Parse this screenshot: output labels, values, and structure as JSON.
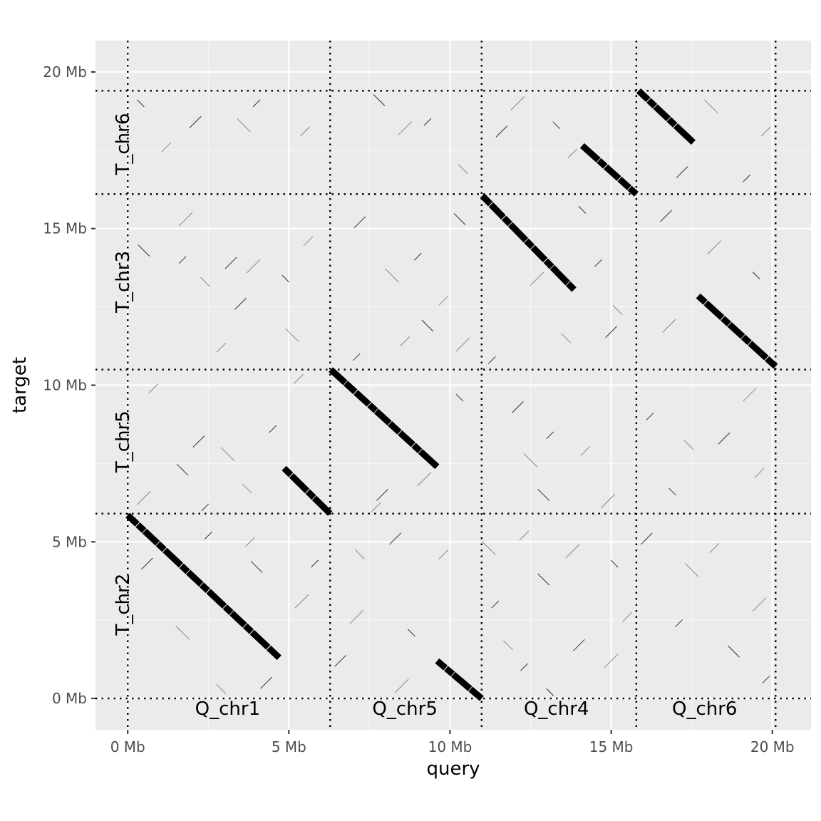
{
  "chart_data": {
    "type": "scatter",
    "subtype": "dot-plot (sequence alignment)",
    "xlabel": "query",
    "ylabel": "target",
    "xlim": [
      -1.0,
      21.2
    ],
    "ylim": [
      -1.0,
      21.0
    ],
    "x_ticks": [
      {
        "value": 0,
        "label": "0 Mb"
      },
      {
        "value": 5,
        "label": "5 Mb"
      },
      {
        "value": 10,
        "label": "10 Mb"
      },
      {
        "value": 15,
        "label": "15 Mb"
      },
      {
        "value": 20,
        "label": "20 Mb"
      }
    ],
    "y_ticks": [
      {
        "value": 0,
        "label": "0 Mb"
      },
      {
        "value": 5,
        "label": "5 Mb"
      },
      {
        "value": 10,
        "label": "10 Mb"
      },
      {
        "value": 15,
        "label": "15 Mb"
      },
      {
        "value": 20,
        "label": "20 Mb"
      }
    ],
    "x_minor_gridlines": [
      2.5,
      7.5,
      12.5,
      17.5
    ],
    "y_minor_gridlines": [
      2.5,
      7.5,
      12.5,
      17.5
    ],
    "query_boundaries": [
      0,
      6.28,
      10.98,
      15.78,
      20.1
    ],
    "target_boundaries": [
      0,
      5.9,
      10.5,
      16.1,
      19.4
    ],
    "query_chromosomes": [
      {
        "label": "Q_chr1",
        "center": 3.1
      },
      {
        "label": "Q_chr5",
        "center": 8.6
      },
      {
        "label": "Q_chr4",
        "center": 13.3
      },
      {
        "label": "Q_chr6",
        "center": 17.9
      }
    ],
    "target_chromosomes": [
      {
        "label": "T_chr2",
        "center": 3.0
      },
      {
        "label": "T_chr5",
        "center": 8.2
      },
      {
        "label": "T_chr3",
        "center": 13.3
      },
      {
        "label": "T_chr6",
        "center": 17.7
      }
    ],
    "alignment_blocks": [
      {
        "x0": 0.0,
        "y0": 5.85,
        "x1": 4.7,
        "y1": 1.3
      },
      {
        "x0": 4.85,
        "y0": 7.35,
        "x1": 6.28,
        "y1": 5.9
      },
      {
        "x0": 6.3,
        "y0": 10.5,
        "x1": 9.6,
        "y1": 7.4
      },
      {
        "x0": 9.6,
        "y0": 1.2,
        "x1": 10.98,
        "y1": 0.0
      },
      {
        "x0": 11.0,
        "y0": 16.05,
        "x1": 13.85,
        "y1": 13.05
      },
      {
        "x0": 14.1,
        "y0": 17.65,
        "x1": 15.78,
        "y1": 16.1
      },
      {
        "x0": 15.85,
        "y0": 19.4,
        "x1": 17.55,
        "y1": 17.75
      },
      {
        "x0": 17.7,
        "y0": 12.85,
        "x1": 20.1,
        "y1": 10.6
      }
    ],
    "noise_hits": [
      [
        0.4,
        19.0
      ],
      [
        1.2,
        17.6
      ],
      [
        2.1,
        18.4
      ],
      [
        3.6,
        18.3
      ],
      [
        4.0,
        19.0
      ],
      [
        5.5,
        18.1
      ],
      [
        7.8,
        19.1
      ],
      [
        8.6,
        18.2
      ],
      [
        9.3,
        18.4
      ],
      [
        10.4,
        16.9
      ],
      [
        11.6,
        18.1
      ],
      [
        12.1,
        19.0
      ],
      [
        13.3,
        18.3
      ],
      [
        13.8,
        17.4
      ],
      [
        17.2,
        16.8
      ],
      [
        18.1,
        18.9
      ],
      [
        19.2,
        16.6
      ],
      [
        19.8,
        18.1
      ],
      [
        0.5,
        14.3
      ],
      [
        1.8,
        15.3
      ],
      [
        1.7,
        14.0
      ],
      [
        2.4,
        13.3
      ],
      [
        3.2,
        13.9
      ],
      [
        3.9,
        13.8
      ],
      [
        4.9,
        13.4
      ],
      [
        5.6,
        14.6
      ],
      [
        7.2,
        15.2
      ],
      [
        8.2,
        13.5
      ],
      [
        9.0,
        14.1
      ],
      [
        9.8,
        12.7
      ],
      [
        10.3,
        15.3
      ],
      [
        12.7,
        13.4
      ],
      [
        14.6,
        13.9
      ],
      [
        15.2,
        12.4
      ],
      [
        16.7,
        15.4
      ],
      [
        18.2,
        14.4
      ],
      [
        19.5,
        13.5
      ],
      [
        2.9,
        11.2
      ],
      [
        3.5,
        12.6
      ],
      [
        5.1,
        11.6
      ],
      [
        7.1,
        10.9
      ],
      [
        8.6,
        11.4
      ],
      [
        9.3,
        11.9
      ],
      [
        10.4,
        11.3
      ],
      [
        11.3,
        10.8
      ],
      [
        13.6,
        11.5
      ],
      [
        15.0,
        11.7
      ],
      [
        16.8,
        11.9
      ],
      [
        14.1,
        15.6
      ],
      [
        0.8,
        9.9
      ],
      [
        2.2,
        8.2
      ],
      [
        3.1,
        7.8
      ],
      [
        4.5,
        8.6
      ],
      [
        5.3,
        10.2
      ],
      [
        1.7,
        7.3
      ],
      [
        0.5,
        6.4
      ],
      [
        2.4,
        6.1
      ],
      [
        3.7,
        6.7
      ],
      [
        7.9,
        6.5
      ],
      [
        9.2,
        7.0
      ],
      [
        10.3,
        9.6
      ],
      [
        7.7,
        6.1
      ],
      [
        12.1,
        9.3
      ],
      [
        12.5,
        7.6
      ],
      [
        13.1,
        8.4
      ],
      [
        14.2,
        7.9
      ],
      [
        12.9,
        6.5
      ],
      [
        14.9,
        6.3
      ],
      [
        16.2,
        9.0
      ],
      [
        17.4,
        8.1
      ],
      [
        18.5,
        8.3
      ],
      [
        19.3,
        9.7
      ],
      [
        16.9,
        6.6
      ],
      [
        19.6,
        7.2
      ],
      [
        0.6,
        4.3
      ],
      [
        1.7,
        2.1
      ],
      [
        2.5,
        5.2
      ],
      [
        3.8,
        5.0
      ],
      [
        4.0,
        4.2
      ],
      [
        5.4,
        3.1
      ],
      [
        5.8,
        4.3
      ],
      [
        7.2,
        4.6
      ],
      [
        8.3,
        5.1
      ],
      [
        7.1,
        2.6
      ],
      [
        8.8,
        2.1
      ],
      [
        9.8,
        4.6
      ],
      [
        6.6,
        1.2
      ],
      [
        11.2,
        4.8
      ],
      [
        11.4,
        3.0
      ],
      [
        12.3,
        5.2
      ],
      [
        12.9,
        3.8
      ],
      [
        13.8,
        4.7
      ],
      [
        12.3,
        1.0
      ],
      [
        11.8,
        1.7
      ],
      [
        14.0,
        1.7
      ],
      [
        15.0,
        1.2
      ],
      [
        15.1,
        4.3
      ],
      [
        15.5,
        2.6
      ],
      [
        16.1,
        5.1
      ],
      [
        17.5,
        4.1
      ],
      [
        17.1,
        2.4
      ],
      [
        18.2,
        4.8
      ],
      [
        18.8,
        1.5
      ],
      [
        19.6,
        3.0
      ],
      [
        19.8,
        0.6
      ],
      [
        2.9,
        0.3
      ],
      [
        4.3,
        0.5
      ],
      [
        8.5,
        0.4
      ],
      [
        13.1,
        0.2
      ]
    ]
  }
}
